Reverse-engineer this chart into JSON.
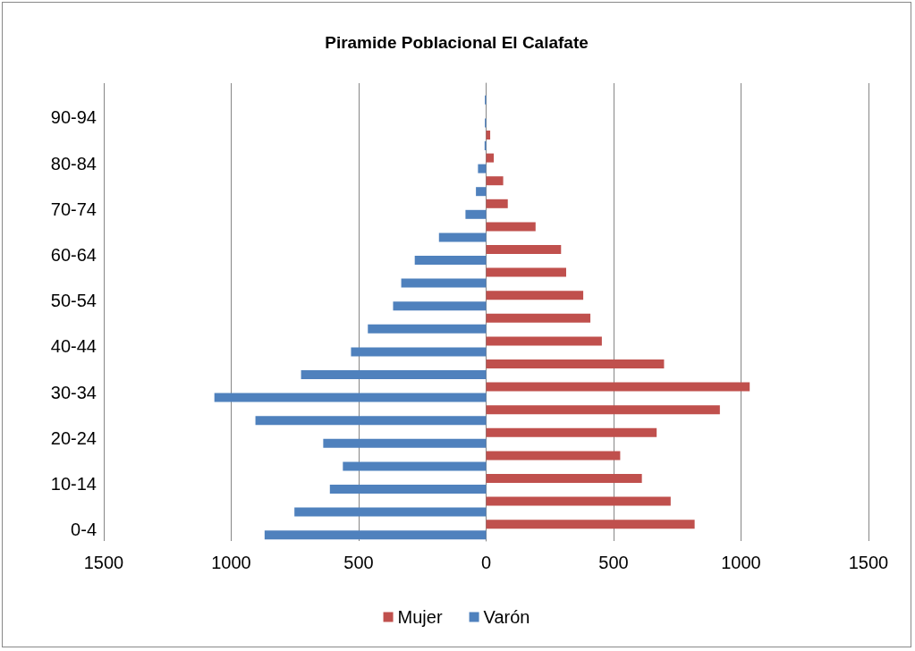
{
  "chart_data": {
    "type": "bar",
    "orientation": "horizontal",
    "title": "Piramide Poblacional El Calafate",
    "categories": [
      null,
      "90-94",
      null,
      "80-84",
      null,
      "70-74",
      null,
      "60-64",
      null,
      "50-54",
      null,
      "40-44",
      null,
      "30-34",
      null,
      "20-24",
      null,
      "10-14",
      null,
      "0-4"
    ],
    "series": [
      {
        "name": "Mujer",
        "color": "#c0504d",
        "values": [
          0,
          0,
          16,
          30,
          67,
          85,
          194,
          294,
          314,
          381,
          409,
          454,
          698,
          1034,
          917,
          669,
          526,
          611,
          724,
          818
        ]
      },
      {
        "name": "Varón",
        "color": "#4f81bd",
        "values": [
          -5,
          -5,
          -6,
          -32,
          -40,
          -81,
          -185,
          -280,
          -333,
          -365,
          -464,
          -530,
          -726,
          -1066,
          -905,
          -639,
          -562,
          -613,
          -752,
          -869
        ]
      }
    ],
    "xlim": [
      -1500,
      1500
    ],
    "xticks": [
      {
        "value": -1500,
        "label": "1500"
      },
      {
        "value": -1000,
        "label": "1000"
      },
      {
        "value": -500,
        "label": "500"
      },
      0,
      500,
      1000,
      1500
    ],
    "grid": "x",
    "legend": "bottom"
  }
}
